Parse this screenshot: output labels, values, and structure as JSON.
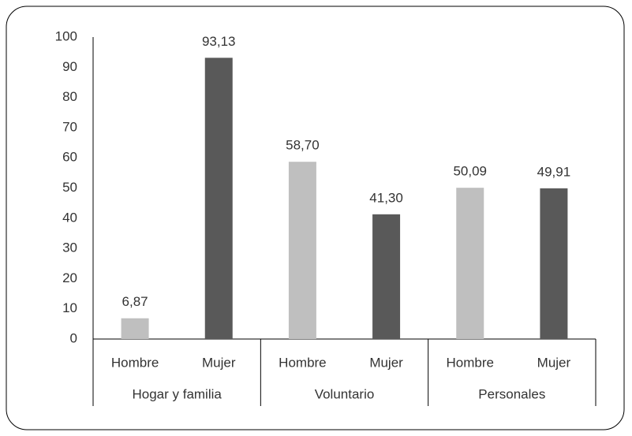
{
  "chart_data": {
    "type": "bar",
    "categories": [
      "Hombre",
      "Mujer",
      "Hombre",
      "Mujer",
      "Hombre",
      "Mujer"
    ],
    "groups": [
      "Hogar y familia",
      "Voluntario",
      "Personales"
    ],
    "values": [
      6.87,
      93.13,
      58.7,
      41.3,
      50.09,
      49.91
    ],
    "value_labels": [
      "6,87",
      "93,13",
      "58,70",
      "41,30",
      "50,09",
      "49,91"
    ],
    "colors": [
      "#bfbfbf",
      "#595959",
      "#bfbfbf",
      "#595959",
      "#bfbfbf",
      "#595959"
    ],
    "ylim": [
      0,
      100
    ],
    "yticks": [
      0,
      10,
      20,
      30,
      40,
      50,
      60,
      70,
      80,
      90,
      100
    ],
    "grid": false
  }
}
